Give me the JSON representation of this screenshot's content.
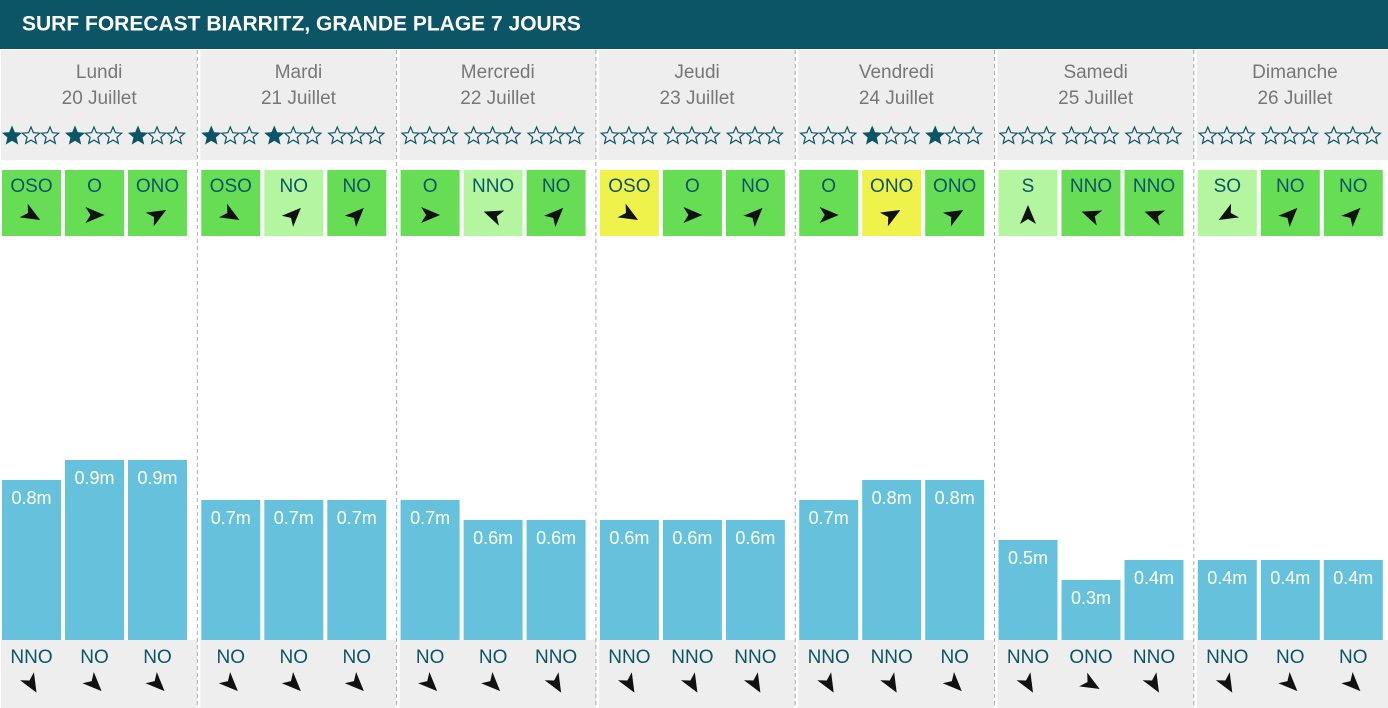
{
  "header": {
    "title": "SURF FORECAST BIARRITZ, GRANDE PLAGE 7 JOURS"
  },
  "days": [
    {
      "name": "Lundi",
      "date": "20 Juillet",
      "slots": [
        {
          "stars": 1,
          "wind": "OSO",
          "wind_color": "#66dd55",
          "wind_arrow": 30,
          "wave": 0.8,
          "wave_label": "0.8m",
          "swell": "NNO",
          "swell_arrow": 60
        },
        {
          "stars": 1,
          "wind": "O",
          "wind_color": "#66dd55",
          "wind_arrow": 0,
          "wave": 0.9,
          "wave_label": "0.9m",
          "swell": "NO",
          "swell_arrow": 45
        },
        {
          "stars": 1,
          "wind": "ONO",
          "wind_color": "#66dd55",
          "wind_arrow": -30,
          "wave": 0.9,
          "wave_label": "0.9m",
          "swell": "NO",
          "swell_arrow": 45
        }
      ]
    },
    {
      "name": "Mardi",
      "date": "21 Juillet",
      "slots": [
        {
          "stars": 1,
          "wind": "OSO",
          "wind_color": "#66dd55",
          "wind_arrow": 30,
          "wave": 0.7,
          "wave_label": "0.7m",
          "swell": "NO",
          "swell_arrow": 45
        },
        {
          "stars": 1,
          "wind": "NO",
          "wind_color": "#b4f5a0",
          "wind_arrow": -45,
          "wave": 0.7,
          "wave_label": "0.7m",
          "swell": "NO",
          "swell_arrow": 45
        },
        {
          "stars": 0,
          "wind": "NO",
          "wind_color": "#66dd55",
          "wind_arrow": -45,
          "wave": 0.7,
          "wave_label": "0.7m",
          "swell": "NO",
          "swell_arrow": 45
        }
      ]
    },
    {
      "name": "Mercredi",
      "date": "22 Juillet",
      "slots": [
        {
          "stars": 0,
          "wind": "O",
          "wind_color": "#66dd55",
          "wind_arrow": 0,
          "wave": 0.7,
          "wave_label": "0.7m",
          "swell": "NO",
          "swell_arrow": 45
        },
        {
          "stars": 0,
          "wind": "NNO",
          "wind_color": "#b4f5a0",
          "wind_arrow": 200,
          "wave": 0.6,
          "wave_label": "0.6m",
          "swell": "NO",
          "swell_arrow": 45
        },
        {
          "stars": 0,
          "wind": "NO",
          "wind_color": "#66dd55",
          "wind_arrow": -45,
          "wave": 0.6,
          "wave_label": "0.6m",
          "swell": "NNO",
          "swell_arrow": 60
        }
      ]
    },
    {
      "name": "Jeudi",
      "date": "23 Juillet",
      "slots": [
        {
          "stars": 0,
          "wind": "OSO",
          "wind_color": "#eef24a",
          "wind_arrow": 30,
          "wave": 0.6,
          "wave_label": "0.6m",
          "swell": "NNO",
          "swell_arrow": 60
        },
        {
          "stars": 0,
          "wind": "O",
          "wind_color": "#66dd55",
          "wind_arrow": 0,
          "wave": 0.6,
          "wave_label": "0.6m",
          "swell": "NNO",
          "swell_arrow": 60
        },
        {
          "stars": 0,
          "wind": "NO",
          "wind_color": "#66dd55",
          "wind_arrow": -45,
          "wave": 0.6,
          "wave_label": "0.6m",
          "swell": "NNO",
          "swell_arrow": 60
        }
      ]
    },
    {
      "name": "Vendredi",
      "date": "24 Juillet",
      "slots": [
        {
          "stars": 0,
          "wind": "O",
          "wind_color": "#66dd55",
          "wind_arrow": 0,
          "wave": 0.7,
          "wave_label": "0.7m",
          "swell": "NNO",
          "swell_arrow": 60
        },
        {
          "stars": 1,
          "wind": "ONO",
          "wind_color": "#eef24a",
          "wind_arrow": -30,
          "wave": 0.8,
          "wave_label": "0.8m",
          "swell": "NNO",
          "swell_arrow": 60
        },
        {
          "stars": 1,
          "wind": "ONO",
          "wind_color": "#66dd55",
          "wind_arrow": -30,
          "wave": 0.8,
          "wave_label": "0.8m",
          "swell": "NO",
          "swell_arrow": 45
        }
      ]
    },
    {
      "name": "Samedi",
      "date": "25 Juillet",
      "slots": [
        {
          "stars": 0,
          "wind": "S",
          "wind_color": "#b4f5a0",
          "wind_arrow": -90,
          "wave": 0.5,
          "wave_label": "0.5m",
          "swell": "NNO",
          "swell_arrow": 60
        },
        {
          "stars": 0,
          "wind": "NNO",
          "wind_color": "#66dd55",
          "wind_arrow": 200,
          "wave": 0.3,
          "wave_label": "0.3m",
          "swell": "ONO",
          "swell_arrow": 30
        },
        {
          "stars": 0,
          "wind": "NNO",
          "wind_color": "#66dd55",
          "wind_arrow": 200,
          "wave": 0.4,
          "wave_label": "0.4m",
          "swell": "NNO",
          "swell_arrow": 60
        }
      ]
    },
    {
      "name": "Dimanche",
      "date": "26 Juillet",
      "slots": [
        {
          "stars": 0,
          "wind": "SO",
          "wind_color": "#b4f5a0",
          "wind_arrow": 150,
          "wave": 0.4,
          "wave_label": "0.4m",
          "swell": "NNO",
          "swell_arrow": 60
        },
        {
          "stars": 0,
          "wind": "NO",
          "wind_color": "#66dd55",
          "wind_arrow": -45,
          "wave": 0.4,
          "wave_label": "0.4m",
          "swell": "NO",
          "swell_arrow": 45
        },
        {
          "stars": 0,
          "wind": "NO",
          "wind_color": "#66dd55",
          "wind_arrow": -45,
          "wave": 0.4,
          "wave_label": "0.4m",
          "swell": "NO",
          "swell_arrow": 45
        }
      ]
    }
  ]
}
